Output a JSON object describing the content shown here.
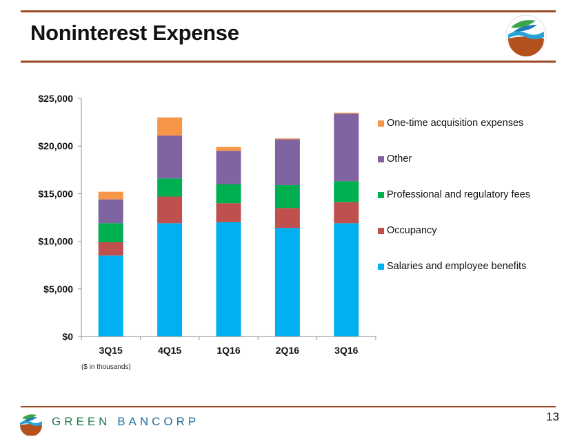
{
  "slide": {
    "title": "Noninterest Expense",
    "note": "($ in thousands)",
    "page_number": "13",
    "footer_brand_1": "GREEN",
    "footer_brand_2": "BANCORP"
  },
  "colors": {
    "rule": "#9c4a22",
    "salaries": "#00b0f0",
    "occupancy": "#c0504d",
    "professional": "#00b050",
    "other": "#8064a2",
    "onetime": "#f79646"
  },
  "chart_data": {
    "type": "bar",
    "stacked": true,
    "categories": [
      "3Q15",
      "4Q15",
      "1Q16",
      "2Q16",
      "3Q16"
    ],
    "ylim": [
      0,
      25000
    ],
    "yticks": [
      0,
      5000,
      10000,
      15000,
      20000,
      25000
    ],
    "ytick_labels": [
      "$0",
      "$5,000",
      "$10,000",
      "$15,000",
      "$20,000",
      "$25,000"
    ],
    "legend_position": "right",
    "series": [
      {
        "name": "Salaries and employee benefits",
        "color": "#00b0f0",
        "values": [
          8500,
          11900,
          12000,
          11400,
          11900
        ]
      },
      {
        "name": "Occupancy",
        "color": "#c0504d",
        "values": [
          1400,
          2800,
          2000,
          2100,
          2200
        ]
      },
      {
        "name": "Professional and regulatory fees",
        "color": "#00b050",
        "values": [
          2000,
          1900,
          2000,
          2400,
          2200
        ]
      },
      {
        "name": "Other",
        "color": "#8064a2",
        "values": [
          2500,
          4500,
          3500,
          4800,
          7100
        ]
      },
      {
        "name": "One-time acquisition expenses",
        "color": "#f79646",
        "values": [
          800,
          1900,
          400,
          100,
          100
        ]
      }
    ]
  }
}
